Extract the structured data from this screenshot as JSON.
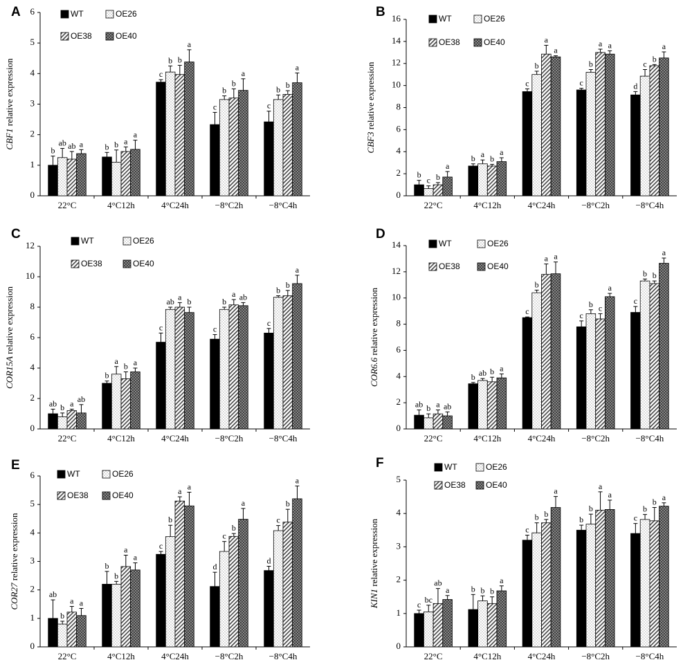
{
  "figure": {
    "series_names": [
      "WT",
      "OE26",
      "OE38",
      "OE40"
    ]
  },
  "chart_data": [
    {
      "panel": "A",
      "type": "bar",
      "gene": "CBF1",
      "ylabel_suffix": " relative expression",
      "categories": [
        "22°C",
        "4°C12h",
        "4°C24h",
        "−8°C2h",
        "−8°C4h"
      ],
      "ylim": [
        0,
        6
      ],
      "yticks": [
        0,
        1,
        2,
        3,
        4,
        5,
        6
      ],
      "series": [
        {
          "name": "WT",
          "values": [
            1.0,
            1.27,
            3.72,
            2.33,
            2.42
          ],
          "errors": [
            0.3,
            0.15,
            0.08,
            0.4,
            0.35
          ],
          "letters": [
            "b",
            "b",
            "c",
            "c",
            "c"
          ]
        },
        {
          "name": "OE26",
          "values": [
            1.25,
            1.1,
            4.05,
            3.15,
            3.15
          ],
          "errors": [
            0.3,
            0.4,
            0.2,
            0.12,
            0.15
          ],
          "letters": [
            "ab",
            "b",
            "b",
            "b",
            "b"
          ]
        },
        {
          "name": "OE38",
          "values": [
            1.2,
            1.45,
            3.97,
            3.2,
            3.32
          ],
          "errors": [
            0.25,
            0.15,
            0.3,
            0.3,
            0.12
          ],
          "letters": [
            "ab",
            "a",
            "b",
            "b",
            "b"
          ]
        },
        {
          "name": "OE40",
          "values": [
            1.38,
            1.52,
            4.38,
            3.45,
            3.7
          ],
          "errors": [
            0.13,
            0.3,
            0.4,
            0.38,
            0.32
          ],
          "letters": [
            "a",
            "a",
            "a",
            "a",
            "a"
          ]
        }
      ]
    },
    {
      "panel": "B",
      "type": "bar",
      "gene": "CBF3",
      "ylabel_suffix": " relative expression",
      "categories": [
        "22°C",
        "4°C12h",
        "4°C24h",
        "−8°C2h",
        "−8°C4h"
      ],
      "ylim": [
        0,
        16
      ],
      "yticks": [
        0,
        2,
        4,
        6,
        8,
        10,
        12,
        14,
        16
      ],
      "series": [
        {
          "name": "WT",
          "values": [
            1.0,
            2.7,
            9.45,
            9.6,
            9.15
          ],
          "errors": [
            0.4,
            0.2,
            0.25,
            0.15,
            0.3
          ],
          "letters": [
            "b",
            "b",
            "c",
            "c",
            "d"
          ]
        },
        {
          "name": "OE26",
          "values": [
            0.65,
            2.9,
            11.0,
            11.2,
            10.85
          ],
          "errors": [
            0.25,
            0.35,
            0.3,
            0.25,
            0.6
          ],
          "letters": [
            "c",
            "a",
            "b",
            "b",
            "c"
          ]
        },
        {
          "name": "OE38",
          "values": [
            1.0,
            2.7,
            12.85,
            13.0,
            11.8
          ],
          "errors": [
            0.2,
            0.15,
            0.8,
            0.3,
            0.1
          ],
          "letters": [
            "b",
            "b",
            "a",
            "a",
            "b"
          ]
        },
        {
          "name": "OE40",
          "values": [
            1.7,
            3.1,
            12.6,
            12.85,
            12.5
          ],
          "errors": [
            0.5,
            0.35,
            0.1,
            0.3,
            0.55
          ],
          "letters": [
            "a",
            "a",
            "a",
            "a",
            "a"
          ]
        }
      ]
    },
    {
      "panel": "C",
      "type": "bar",
      "gene": "COR15A",
      "ylabel_suffix": " relative expression",
      "categories": [
        "22°C",
        "4°C12h",
        "4°C24h",
        "−8°C2h",
        "−8°C4h"
      ],
      "ylim": [
        0,
        12
      ],
      "yticks": [
        0,
        2,
        4,
        6,
        8,
        10,
        12
      ],
      "series": [
        {
          "name": "WT",
          "values": [
            1.0,
            3.0,
            5.7,
            5.9,
            6.3
          ],
          "errors": [
            0.3,
            0.15,
            0.6,
            0.3,
            0.3
          ],
          "letters": [
            "ab",
            "b",
            "c",
            "c",
            "c"
          ]
        },
        {
          "name": "OE26",
          "values": [
            0.8,
            3.6,
            7.85,
            7.85,
            8.65
          ],
          "errors": [
            0.25,
            0.5,
            0.15,
            0.15,
            0.1
          ],
          "letters": [
            "b",
            "a",
            "ab",
            "b",
            "b"
          ]
        },
        {
          "name": "OE38",
          "values": [
            1.2,
            3.3,
            8.0,
            8.15,
            8.75
          ],
          "errors": [
            0.1,
            0.45,
            0.3,
            0.35,
            0.35
          ],
          "letters": [
            "a",
            "b",
            "a",
            "a",
            "b"
          ]
        },
        {
          "name": "OE40",
          "values": [
            1.05,
            3.75,
            7.65,
            8.1,
            9.55
          ],
          "errors": [
            0.55,
            0.25,
            0.35,
            0.2,
            0.55
          ],
          "letters": [
            "ab",
            "a",
            "b",
            "ab",
            "a"
          ]
        }
      ]
    },
    {
      "panel": "D",
      "type": "bar",
      "gene": "COR6.6",
      "ylabel_suffix": " relative expression",
      "categories": [
        "22°C",
        "4°C12h",
        "4°C24h",
        "−8°C2h",
        "−8°C4h"
      ],
      "ylim": [
        0,
        14
      ],
      "yticks": [
        0,
        2,
        4,
        6,
        8,
        10,
        12,
        14
      ],
      "series": [
        {
          "name": "WT",
          "values": [
            1.05,
            3.45,
            8.5,
            7.8,
            8.9
          ],
          "errors": [
            0.4,
            0.1,
            0.05,
            0.45,
            0.45
          ],
          "letters": [
            "ab",
            "b",
            "c",
            "c",
            "c"
          ]
        },
        {
          "name": "OE26",
          "values": [
            0.85,
            3.7,
            10.4,
            8.8,
            11.3
          ],
          "errors": [
            0.3,
            0.15,
            0.2,
            0.3,
            0.15
          ],
          "letters": [
            "b",
            "ab",
            "b",
            "b",
            "b"
          ]
        },
        {
          "name": "OE38",
          "values": [
            1.15,
            3.6,
            11.8,
            8.4,
            11.1
          ],
          "errors": [
            0.3,
            0.35,
            0.8,
            0.4,
            0.2
          ],
          "letters": [
            "a",
            "b",
            "a",
            "c",
            "b"
          ]
        },
        {
          "name": "OE40",
          "values": [
            1.0,
            3.9,
            11.85,
            10.1,
            12.65
          ],
          "errors": [
            0.3,
            0.3,
            0.9,
            0.25,
            0.4
          ],
          "letters": [
            "ab",
            "a",
            "a",
            "a",
            "a"
          ]
        }
      ]
    },
    {
      "panel": "E",
      "type": "bar",
      "gene": "COR27",
      "ylabel_suffix": " relative expression",
      "categories": [
        "22°C",
        "4°C12h",
        "4°C24h",
        "−8°C2h",
        "−8°C4h"
      ],
      "ylim": [
        0,
        6
      ],
      "yticks": [
        0,
        1,
        2,
        3,
        4,
        5,
        6
      ],
      "series": [
        {
          "name": "WT",
          "values": [
            1.0,
            2.2,
            3.25,
            2.12,
            2.68
          ],
          "errors": [
            0.65,
            0.45,
            0.1,
            0.5,
            0.15
          ],
          "letters": [
            "ab",
            "b",
            "c",
            "d",
            "d"
          ]
        },
        {
          "name": "OE26",
          "values": [
            0.8,
            2.2,
            3.87,
            3.35,
            4.08
          ],
          "errors": [
            0.1,
            0.1,
            0.4,
            0.35,
            0.18
          ],
          "letters": [
            "b",
            "b",
            "b",
            "c",
            "c"
          ]
        },
        {
          "name": "OE38",
          "values": [
            1.22,
            2.82,
            5.12,
            3.88,
            4.38
          ],
          "errors": [
            0.2,
            0.4,
            0.15,
            0.1,
            0.45
          ],
          "letters": [
            "a",
            "a",
            "a",
            "b",
            "b"
          ]
        },
        {
          "name": "OE40",
          "values": [
            1.1,
            2.7,
            4.95,
            4.48,
            5.2
          ],
          "errors": [
            0.25,
            0.25,
            0.48,
            0.38,
            0.45
          ],
          "letters": [
            "a",
            "a",
            "a",
            "a",
            "a"
          ]
        }
      ]
    },
    {
      "panel": "F",
      "type": "bar",
      "gene": "KIN1",
      "ylabel_suffix": " relative expression",
      "categories": [
        "22°C",
        "4°C12h",
        "4°C24h",
        "−8°C2h",
        "−8°C4h"
      ],
      "ylim": [
        0,
        5
      ],
      "yticks": [
        0,
        1,
        2,
        3,
        4,
        5
      ],
      "series": [
        {
          "name": "WT",
          "values": [
            1.0,
            1.12,
            3.2,
            3.5,
            3.4
          ],
          "errors": [
            0.1,
            0.45,
            0.15,
            0.15,
            0.3
          ],
          "letters": [
            "c",
            "b",
            "c",
            "b",
            "c"
          ]
        },
        {
          "name": "OE26",
          "values": [
            1.05,
            1.38,
            3.42,
            3.68,
            3.82
          ],
          "errors": [
            0.2,
            0.15,
            0.3,
            0.3,
            0.15
          ],
          "letters": [
            "bc",
            "b",
            "b",
            "b",
            "b"
          ]
        },
        {
          "name": "OE38",
          "values": [
            1.3,
            1.3,
            3.72,
            4.1,
            3.78
          ],
          "errors": [
            0.45,
            0.2,
            0.1,
            0.55,
            0.4
          ],
          "letters": [
            "ab",
            "b",
            "b",
            "a",
            "b"
          ]
        },
        {
          "name": "OE40",
          "values": [
            1.42,
            1.68,
            4.18,
            4.12,
            4.22
          ],
          "errors": [
            0.12,
            0.15,
            0.33,
            0.28,
            0.1
          ],
          "letters": [
            "a",
            "a",
            "a",
            "a",
            "a"
          ]
        }
      ]
    }
  ]
}
